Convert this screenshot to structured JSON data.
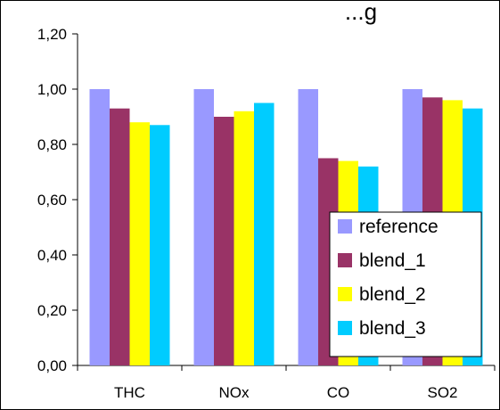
{
  "chart_data": {
    "type": "bar",
    "title": "...g",
    "categories": [
      "THC",
      "NOx",
      "CO",
      "SO2"
    ],
    "series": [
      {
        "name": "reference",
        "color": "#9999FF",
        "values": [
          1.0,
          1.0,
          1.0,
          1.0
        ]
      },
      {
        "name": "blend_1",
        "color": "#993366",
        "values": [
          0.93,
          0.9,
          0.75,
          0.97
        ]
      },
      {
        "name": "blend_2",
        "color": "#FFFF00",
        "values": [
          0.88,
          0.92,
          0.74,
          0.96
        ]
      },
      {
        "name": "blend_3",
        "color": "#00CCFF",
        "values": [
          0.87,
          0.95,
          0.72,
          0.93
        ]
      }
    ],
    "ylim": [
      0,
      1.2
    ],
    "yticks": [
      "0,00",
      "0,20",
      "0,40",
      "0,60",
      "0,80",
      "1,00",
      "1,20"
    ],
    "xlabel": "",
    "ylabel": "",
    "grid": false,
    "legend_position": "bottom-right"
  }
}
